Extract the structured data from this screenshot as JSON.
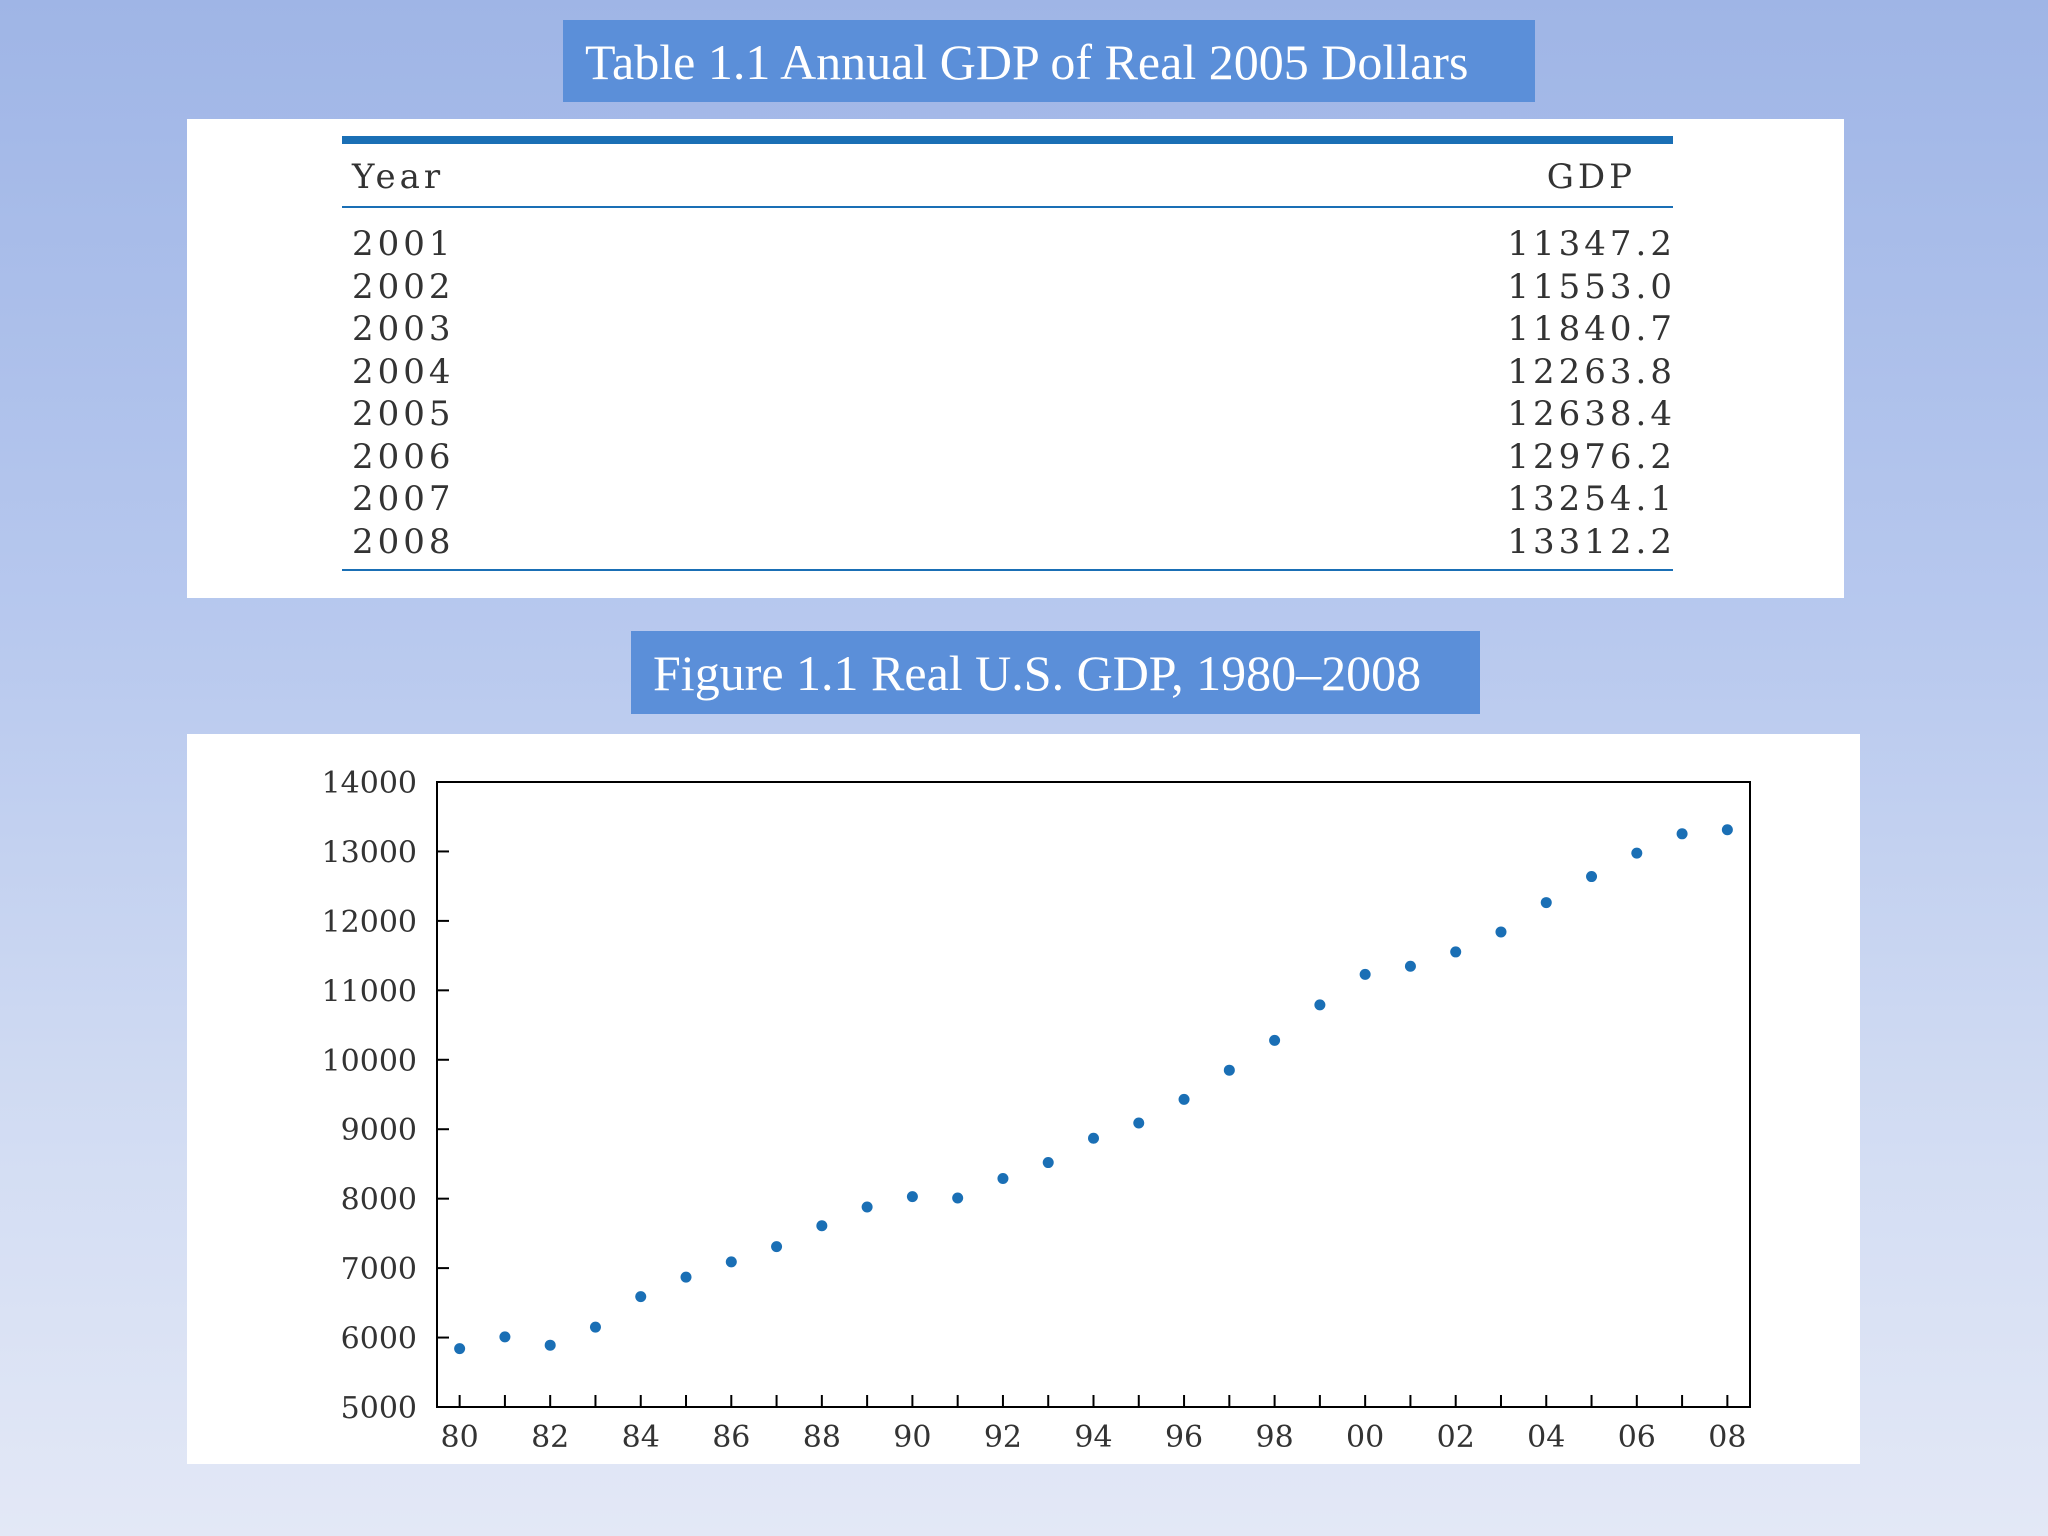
{
  "table_title": "Table 1.1 Annual GDP of Real 2005 Dollars",
  "figure_title": "Figure 1.1 Real U.S. GDP, 1980–2008",
  "table": {
    "headers": {
      "year": "Year",
      "gdp": "GDP"
    },
    "rows": [
      {
        "year": "2001",
        "gdp": "11347.2"
      },
      {
        "year": "2002",
        "gdp": "11553.0"
      },
      {
        "year": "2003",
        "gdp": "11840.7"
      },
      {
        "year": "2004",
        "gdp": "12263.8"
      },
      {
        "year": "2005",
        "gdp": "12638.4"
      },
      {
        "year": "2006",
        "gdp": "12976.2"
      },
      {
        "year": "2007",
        "gdp": "13254.1"
      },
      {
        "year": "2008",
        "gdp": "13312.2"
      }
    ]
  },
  "chart_data": {
    "type": "scatter",
    "title": "Figure 1.1 Real U.S. GDP, 1980–2008",
    "xlabel": "",
    "ylabel": "",
    "x": [
      1980,
      1981,
      1982,
      1983,
      1984,
      1985,
      1986,
      1987,
      1988,
      1989,
      1990,
      1991,
      1992,
      1993,
      1994,
      1995,
      1996,
      1997,
      1998,
      1999,
      2000,
      2001,
      2002,
      2003,
      2004,
      2005,
      2006,
      2007,
      2008
    ],
    "series": [
      {
        "values": [
          5840,
          6010,
          5890,
          6150,
          6590,
          6870,
          7090,
          7310,
          7610,
          7880,
          8030,
          8010,
          8290,
          8520,
          8870,
          9090,
          9430,
          9850,
          10280,
          10790,
          11230,
          11347.2,
          11553.0,
          11840.7,
          12263.8,
          12638.4,
          12976.2,
          13254.1,
          13312.2
        ]
      }
    ],
    "xlim": [
      1979.5,
      2008.5
    ],
    "ylim": [
      5000,
      14000
    ],
    "x_tick_values": [
      1980,
      1982,
      1984,
      1986,
      1988,
      1990,
      1992,
      1994,
      1996,
      1998,
      2000,
      2002,
      2004,
      2006,
      2008
    ],
    "x_tick_labels": [
      "80",
      "82",
      "84",
      "86",
      "88",
      "90",
      "92",
      "94",
      "96",
      "98",
      "00",
      "02",
      "04",
      "06",
      "08"
    ],
    "y_ticks": [
      5000,
      6000,
      7000,
      8000,
      9000,
      10000,
      11000,
      12000,
      13000,
      14000
    ],
    "grid": false,
    "point_color": "#1a6fb5"
  }
}
